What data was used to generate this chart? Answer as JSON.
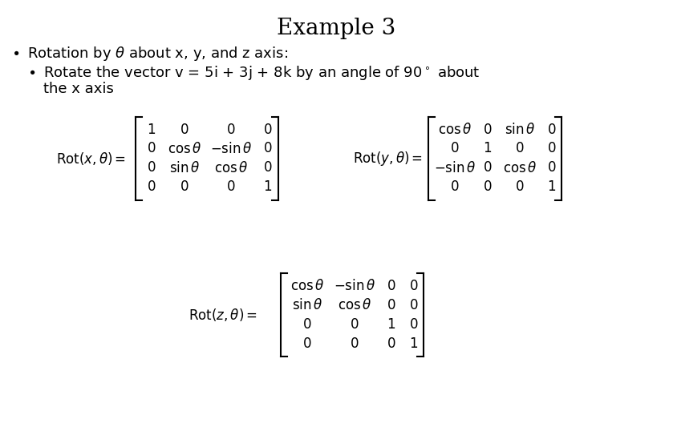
{
  "title": "Example 3",
  "background_color": "#ffffff",
  "text_color": "#000000",
  "rot_x_matrix": [
    [
      "1",
      "0",
      "0",
      "0"
    ],
    [
      "0",
      "\\cos\\theta",
      "-\\sin\\theta",
      "0"
    ],
    [
      "0",
      "\\sin\\theta",
      "\\cos\\theta",
      "0"
    ],
    [
      "0",
      "0",
      "0",
      "1"
    ]
  ],
  "rot_y_matrix": [
    [
      "\\cos\\theta",
      "0",
      "\\sin\\theta",
      "0"
    ],
    [
      "0",
      "1",
      "0",
      "0"
    ],
    [
      "-\\sin\\theta",
      "0",
      "\\cos\\theta",
      "0"
    ],
    [
      "0",
      "0",
      "0",
      "1"
    ]
  ],
  "rot_z_matrix": [
    [
      "\\cos\\theta",
      "-\\sin\\theta",
      "0",
      "0"
    ],
    [
      "\\sin\\theta",
      "\\cos\\theta",
      "0",
      "0"
    ],
    [
      "0",
      "0",
      "1",
      "0"
    ],
    [
      "0",
      "0",
      "0",
      "1"
    ]
  ],
  "fig_w": 8.39,
  "fig_h": 5.28,
  "dpi": 100,
  "title_fs": 20,
  "body_fs": 13,
  "mat_fs": 12,
  "label_fs": 12
}
